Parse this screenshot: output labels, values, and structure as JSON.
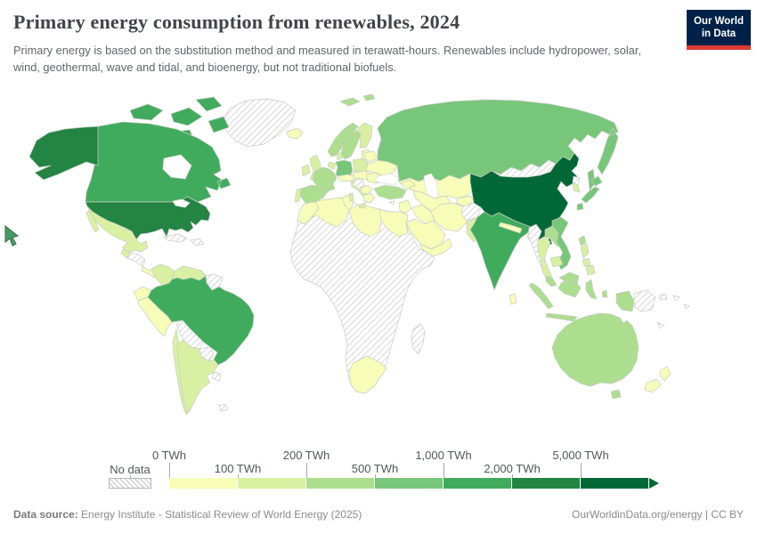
{
  "header": {
    "title": "Primary energy consumption from renewables, 2024",
    "subtitle": "Primary energy is based on the substitution method and measured in terawatt-hours. Renewables include hydropower, solar, wind, geothermal, wave and tidal, and bioenergy, but not traditional biofuels.",
    "logo_line1": "Our World",
    "logo_line2": "in Data"
  },
  "colors": {
    "logo_bg": "#002147",
    "logo_accent": "#dc3b34",
    "title_color": "#3f444a",
    "ocean": "#ffffff",
    "border": "#c6cdc6"
  },
  "chart_data": {
    "type": "choropleth-map",
    "title": "Primary energy consumption from renewables, 2024",
    "unit": "TWh",
    "year": "2024",
    "legend": {
      "no_data_label": "No data",
      "tick_labels": [
        "0 TWh",
        "100 TWh",
        "200 TWh",
        "500 TWh",
        "1,000 TWh",
        "2,000 TWh",
        "5,000 TWh"
      ],
      "bands": [
        {
          "range": "0-100 TWh",
          "color": "#f7fcb9"
        },
        {
          "range": "100-200 TWh",
          "color": "#d9f0a3"
        },
        {
          "range": "200-500 TWh",
          "color": "#addd8e"
        },
        {
          "range": "500-1,000 TWh",
          "color": "#78c679"
        },
        {
          "range": "1,000-2,000 TWh",
          "color": "#41ab5d"
        },
        {
          "range": "2,000-5,000 TWh",
          "color": "#238443"
        },
        {
          "range": "5,000+ TWh",
          "color": "#006837"
        }
      ]
    },
    "regions": {
      "greenland": "no_data",
      "canadian-arctic": 4,
      "canada": 4,
      "alaska": 5,
      "united-states": 5,
      "mexico": 1,
      "guatemala": 1,
      "honduras-nicaragua": "no_data",
      "costa-rica-panama": 0,
      "cuba": "no_data",
      "hispaniola": "no_data",
      "colombia": 1,
      "venezuela": 1,
      "guyanas": "no_data",
      "ecuador": 0,
      "peru": 0,
      "brazil": 4,
      "bolivia": "no_data",
      "paraguay": "no_data",
      "chile": 1,
      "argentina": 1,
      "uruguay": "no_data",
      "falkland-islands": "no_data",
      "iceland": 0,
      "svalbard": 2,
      "united-kingdom": 1,
      "ireland": 1,
      "norway": 2,
      "sweden": 2,
      "finland": 1,
      "baltics": 0,
      "denmark": 1,
      "germany": 3,
      "benelux": 1,
      "france": 2,
      "spain": 2,
      "portugal": 1,
      "italy": 1,
      "switzerland-austria": 0,
      "poland": 1,
      "czechia-hungary": 0,
      "western-balkans": "no_data",
      "romania-bulgaria": 0,
      "balkans-south": 0,
      "greece": 0,
      "ukraine": 0,
      "belarus": 0,
      "russia": 3,
      "kazakhstan": 0,
      "central-asia": 0,
      "kyrgyz-tajik": 0,
      "caucasus": 0,
      "turkey": 2,
      "cyprus": "no_data",
      "levant": 0,
      "iraq": 0,
      "iran": 0,
      "afghanistan": "no_data",
      "pakistan": 1,
      "saudi-arabia": 0,
      "yemen-oman": 0,
      "india": 4,
      "nepal": 0,
      "bangladesh": 0,
      "sri-lanka": 0,
      "china": 6,
      "mongolia": "no_data",
      "north-korea": "no_data",
      "south-korea": 1,
      "japan": 3,
      "taiwan": 2,
      "myanmar": "no_data",
      "thailand": 1,
      "laos": 2,
      "vietnam": 3,
      "cambodia": 1,
      "malaysia": 2,
      "indonesia": 2,
      "papua-new-guinea": "no_data",
      "philippines": 1,
      "australia": 2,
      "new-zealand": 0,
      "pacific-islands": "no_data",
      "sub-saharan-africa": "no_data",
      "morocco": 0,
      "algeria": 0,
      "tunisia": 0,
      "libya": 0,
      "egypt": 0,
      "south-africa": 0,
      "madagascar": "no_data"
    }
  },
  "footer": {
    "source_label": "Data source:",
    "source_text": " Energy Institute - Statistical Review of World Energy (2025)",
    "credit": "OurWorldinData.org/energy | CC BY"
  }
}
